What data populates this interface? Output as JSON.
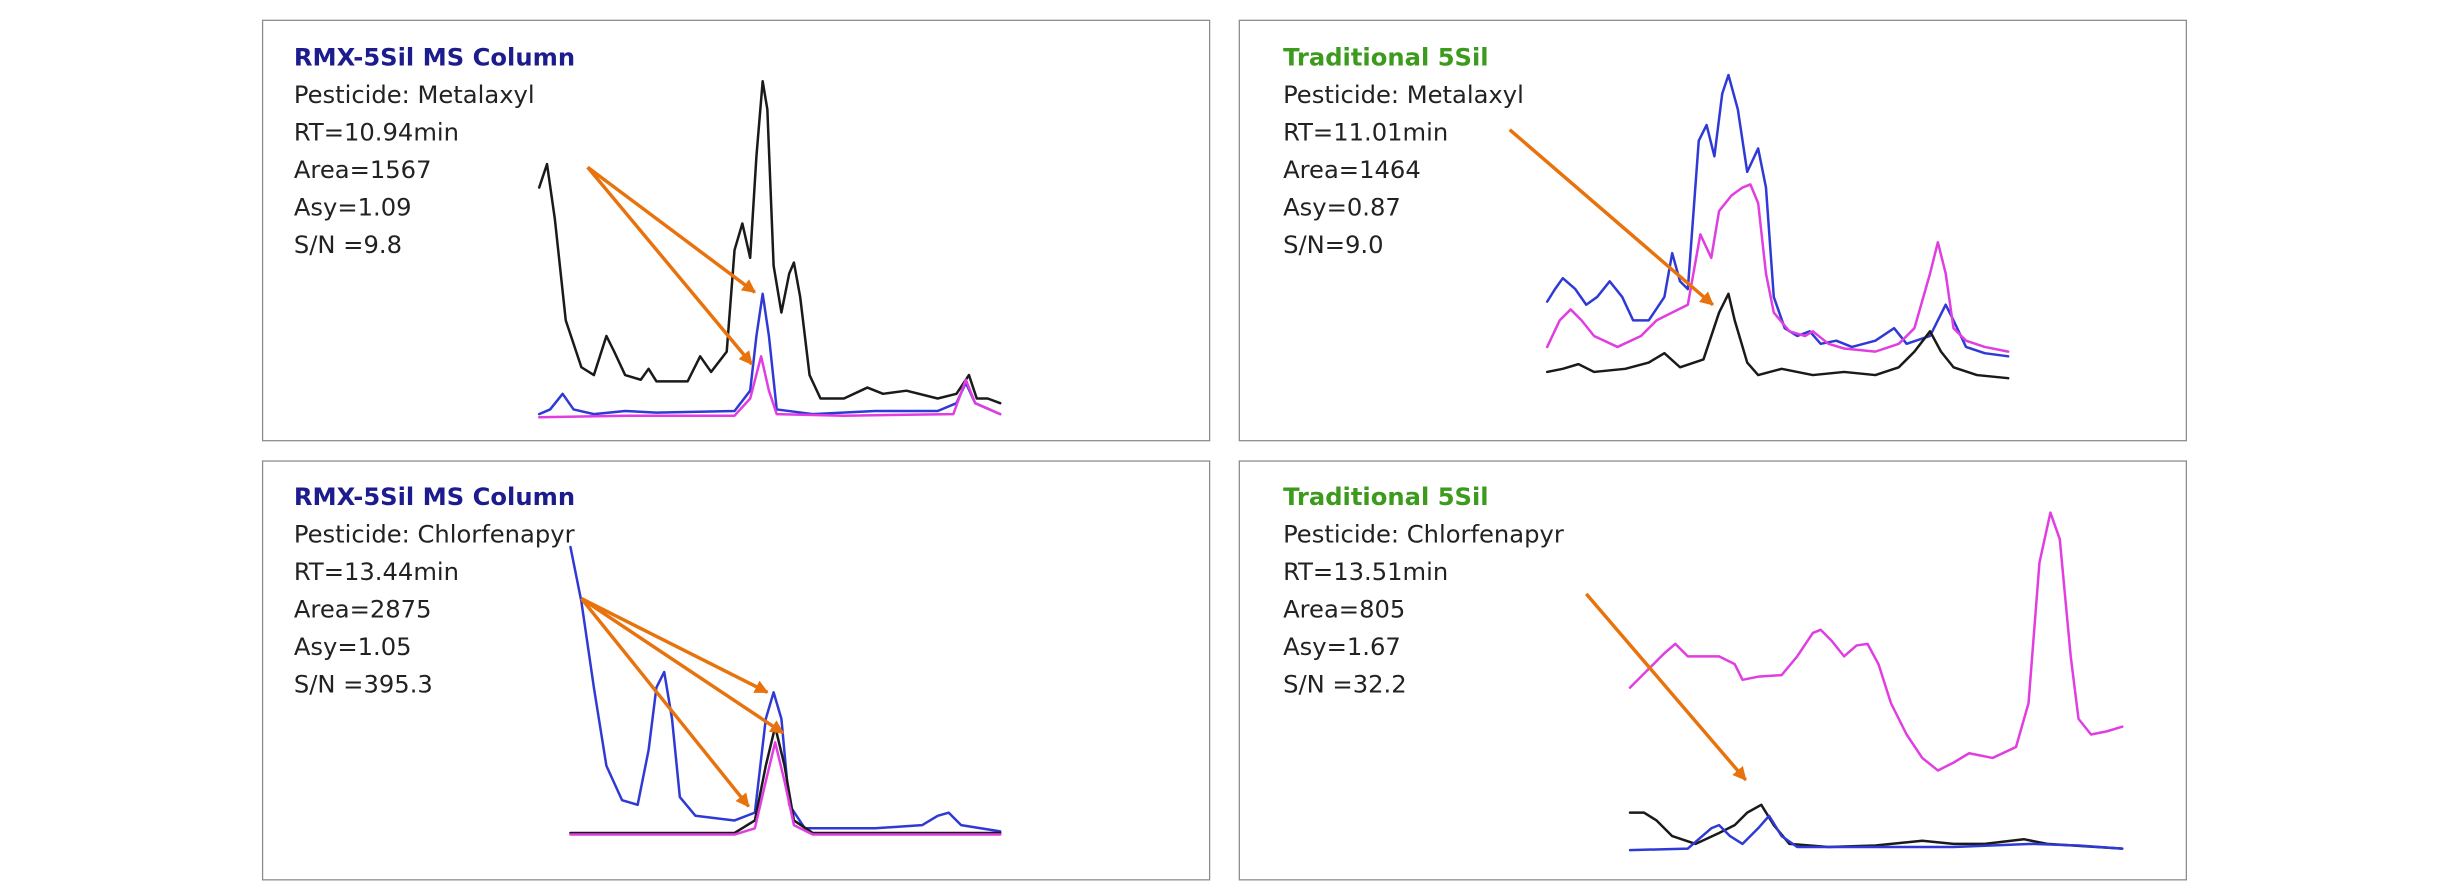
{
  "panels": [
    {
      "title": "RMX-5Sil MS Column",
      "lines": [
        "Pesticide: Metalaxyl",
        "RT=10.94min",
        "Area=1567",
        "Asy=1.09",
        "S/N =9.8"
      ]
    },
    {
      "title": "Traditional 5Sil",
      "lines": [
        "Pesticide: Metalaxyl",
        "RT=11.01min",
        "Area=1464",
        "Asy=0.87",
        "S/N=9.0"
      ]
    },
    {
      "title": "RMX-5Sil MS Column",
      "lines": [
        "Pesticide: Chlorfenapyr",
        "RT=13.44min",
        "Area=2875",
        "Asy=1.05",
        "S/N =395.3"
      ]
    },
    {
      "title": "Traditional 5Sil",
      "lines": [
        "Pesticide: Chlorfenapyr",
        "RT=13.51min",
        "Area=805",
        "Asy=1.67",
        "S/N =32.2"
      ]
    }
  ]
}
